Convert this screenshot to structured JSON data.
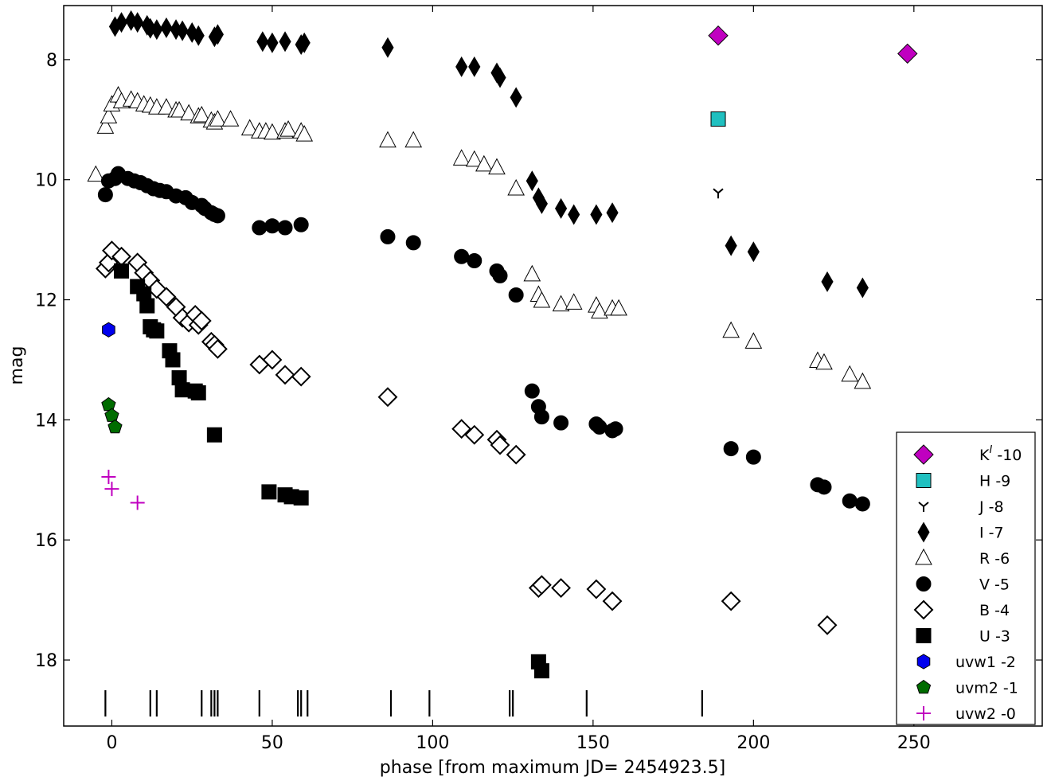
{
  "chart_data": {
    "type": "scatter",
    "xlabel": "phase [from maximum JD= 2454923.5]",
    "ylabel": "mag",
    "xlim": [
      -15,
      290
    ],
    "ylim": [
      19.1,
      7.1
    ],
    "y_inverted": true,
    "xticks": [
      0,
      50,
      100,
      150,
      200,
      250
    ],
    "yticks": [
      8,
      10,
      12,
      14,
      16,
      18
    ],
    "legend_position": "lower-right",
    "grid": false,
    "series": [
      {
        "name": "K",
        "offset_label": "-10",
        "marker": "diamond-large",
        "color": "#c000c0",
        "x": [
          189,
          248
        ],
        "y": [
          7.6,
          7.9
        ]
      },
      {
        "name": "H -9",
        "marker": "square",
        "color": "#20c0c0",
        "x": [
          189
        ],
        "y": [
          8.99
        ]
      },
      {
        "name": "J -8",
        "marker": "tri",
        "color": "#000000",
        "x": [
          189
        ],
        "y": [
          10.22
        ]
      },
      {
        "name": "I -7",
        "marker": "thin-diamond",
        "color": "#000000",
        "x": [
          1,
          3,
          6,
          8,
          11,
          12,
          14,
          17,
          20,
          22,
          25,
          27,
          32,
          33,
          47,
          50,
          54,
          59,
          60,
          86,
          109,
          113,
          120,
          121,
          126,
          131,
          133,
          134,
          140,
          144,
          151,
          156,
          193,
          200,
          223,
          234
        ],
        "y": [
          7.45,
          7.38,
          7.35,
          7.38,
          7.43,
          7.48,
          7.5,
          7.47,
          7.5,
          7.52,
          7.55,
          7.6,
          7.62,
          7.58,
          7.7,
          7.72,
          7.7,
          7.75,
          7.72,
          7.8,
          8.12,
          8.12,
          8.22,
          8.3,
          8.63,
          10.02,
          10.3,
          10.4,
          10.48,
          10.58,
          10.58,
          10.55,
          11.1,
          11.2,
          11.7,
          11.8
        ]
      },
      {
        "name": "R -6",
        "marker": "triangle-open",
        "color": "#000000",
        "x": [
          -5,
          -2,
          -1,
          0,
          2,
          3,
          6,
          8,
          10,
          12,
          14,
          17,
          20,
          21,
          24,
          27,
          28,
          31,
          32,
          33,
          37,
          43,
          46,
          48,
          50,
          54,
          55,
          59,
          60,
          86,
          94,
          109,
          113,
          116,
          120,
          126,
          131,
          133,
          134,
          140,
          144,
          151,
          152,
          156,
          158,
          193,
          200,
          220,
          222,
          230,
          234
        ],
        "y": [
          9.92,
          9.12,
          8.95,
          8.75,
          8.6,
          8.7,
          8.67,
          8.7,
          8.75,
          8.77,
          8.8,
          8.8,
          8.85,
          8.85,
          8.9,
          8.95,
          8.93,
          9.02,
          9.05,
          9.0,
          9.0,
          9.15,
          9.2,
          9.2,
          9.22,
          9.2,
          9.17,
          9.2,
          9.25,
          9.35,
          9.35,
          9.65,
          9.67,
          9.75,
          9.8,
          10.15,
          11.58,
          11.92,
          12.02,
          12.08,
          12.05,
          12.1,
          12.2,
          12.15,
          12.15,
          12.52,
          12.7,
          13.02,
          13.05,
          13.25,
          13.37
        ]
      },
      {
        "name": "V -5",
        "marker": "circle",
        "color": "#000000",
        "x": [
          -2,
          -1,
          1,
          2,
          5,
          7,
          9,
          11,
          13,
          15,
          17,
          20,
          23,
          25,
          28,
          29,
          31,
          32,
          33,
          46,
          50,
          54,
          59,
          86,
          94,
          109,
          113,
          120,
          121,
          126,
          131,
          133,
          134,
          140,
          151,
          152,
          156,
          157,
          193,
          200,
          220,
          222,
          230,
          234
        ],
        "y": [
          10.25,
          10.02,
          9.98,
          9.9,
          9.98,
          10.02,
          10.05,
          10.1,
          10.15,
          10.18,
          10.2,
          10.27,
          10.3,
          10.38,
          10.43,
          10.48,
          10.55,
          10.58,
          10.6,
          10.8,
          10.77,
          10.8,
          10.75,
          10.95,
          11.05,
          11.28,
          11.35,
          11.52,
          11.6,
          11.92,
          13.52,
          13.78,
          13.95,
          14.05,
          14.07,
          14.12,
          14.18,
          14.15,
          14.48,
          14.62,
          15.08,
          15.12,
          15.35,
          15.4
        ]
      },
      {
        "name": "B -4",
        "marker": "diamond-open",
        "color": "#000000",
        "x": [
          -2,
          -1,
          0,
          3,
          8,
          10,
          12,
          14,
          17,
          20,
          22,
          24,
          26,
          27,
          28,
          31,
          32,
          33,
          46,
          50,
          54,
          59,
          86,
          109,
          113,
          120,
          121,
          126,
          133,
          134,
          140,
          151,
          156,
          193,
          223
        ],
        "y": [
          11.48,
          11.38,
          11.18,
          11.28,
          11.38,
          11.55,
          11.68,
          11.82,
          11.95,
          12.12,
          12.3,
          12.38,
          12.25,
          12.42,
          12.35,
          12.7,
          12.75,
          12.82,
          13.08,
          13.0,
          13.25,
          13.28,
          13.62,
          14.15,
          14.25,
          14.33,
          14.42,
          14.58,
          16.8,
          16.75,
          16.8,
          16.82,
          17.02,
          17.02,
          17.42
        ]
      },
      {
        "name": "U -3",
        "marker": "square",
        "color": "#000000",
        "x": [
          3,
          8,
          10,
          11,
          12,
          13,
          14,
          18,
          19,
          21,
          22,
          26,
          27,
          32,
          49,
          54,
          56,
          59,
          133,
          134
        ],
        "y": [
          11.52,
          11.78,
          11.9,
          12.1,
          12.45,
          12.5,
          12.52,
          12.85,
          13.0,
          13.3,
          13.5,
          13.52,
          13.55,
          14.25,
          15.2,
          15.25,
          15.28,
          15.3,
          18.03,
          18.18
        ]
      },
      {
        "name": "uvw1 -2",
        "marker": "hexagon",
        "color": "#0000ee",
        "x": [
          -1
        ],
        "y": [
          12.5
        ]
      },
      {
        "name": "uvm2 -1",
        "marker": "pentagon",
        "color": "#006c00",
        "x": [
          -1,
          0,
          1
        ],
        "y": [
          13.75,
          13.93,
          14.12
        ]
      },
      {
        "name": "uvw2 -0",
        "marker": "plus",
        "color": "#c000c0",
        "x": [
          -1,
          0,
          8
        ],
        "y": [
          14.95,
          15.15,
          15.38
        ]
      }
    ],
    "spectra_epochs": [
      -2,
      12,
      14,
      28,
      31,
      32,
      33,
      46,
      58,
      59,
      61,
      87,
      99,
      124,
      125,
      148,
      184
    ]
  }
}
